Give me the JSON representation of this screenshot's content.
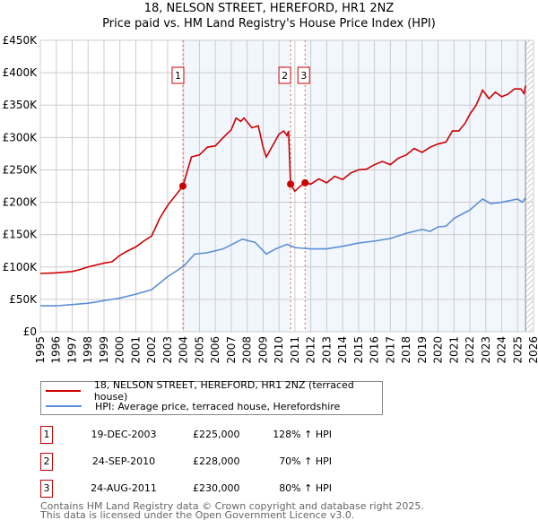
{
  "chart_data": {
    "type": "line",
    "title": "18, NELSON STREET, HEREFORD, HR1 2NZ",
    "subtitle": "Price paid vs. HM Land Registry's House Price Index (HPI)",
    "xlim": [
      1995,
      2026
    ],
    "ylim": [
      0,
      450000
    ],
    "x_ticks": [
      "1995",
      "1996",
      "1997",
      "1998",
      "1999",
      "2000",
      "2001",
      "2002",
      "2003",
      "2004",
      "2005",
      "2006",
      "2007",
      "2008",
      "2009",
      "2010",
      "2011",
      "2012",
      "2013",
      "2014",
      "2015",
      "2016",
      "2017",
      "2018",
      "2019",
      "2020",
      "2021",
      "2022",
      "2023",
      "2024",
      "2025",
      "2026"
    ],
    "y_ticks": [
      {
        "v": 0,
        "label": "£0"
      },
      {
        "v": 50000,
        "label": "£50K"
      },
      {
        "v": 100000,
        "label": "£100K"
      },
      {
        "v": 150000,
        "label": "£150K"
      },
      {
        "v": 200000,
        "label": "£200K"
      },
      {
        "v": 250000,
        "label": "£250K"
      },
      {
        "v": 300000,
        "label": "£300K"
      },
      {
        "v": 350000,
        "label": "£350K"
      },
      {
        "v": 400000,
        "label": "£400K"
      },
      {
        "v": 450000,
        "label": "£450K"
      }
    ],
    "grid": true,
    "series": [
      {
        "name": "18, NELSON STREET, HEREFORD, HR1 2NZ (terraced house)",
        "color": "#cc0000",
        "x": [
          1995,
          1996,
          1997,
          1997.5,
          1998,
          1999,
          1999.5,
          2000,
          2000.5,
          2001,
          2001.5,
          2002,
          2002.5,
          2003,
          2003.96,
          2004.5,
          2005,
          2005.5,
          2006,
          2006.5,
          2007,
          2007.3,
          2007.6,
          2007.8,
          2008.3,
          2008.7,
          2009,
          2009.2,
          2009.5,
          2010,
          2010.3,
          2010.5,
          2010.6,
          2010.73,
          2011,
          2011.3,
          2011.64,
          2012,
          2012.5,
          2013,
          2013.5,
          2014,
          2014.5,
          2015,
          2015.5,
          2016,
          2016.5,
          2017,
          2017.5,
          2018,
          2018.5,
          2019,
          2019.5,
          2020,
          2020.5,
          2020.9,
          2021.3,
          2021.7,
          2022,
          2022.4,
          2022.8,
          2023.2,
          2023.6,
          2024,
          2024.4,
          2024.8,
          2025.2,
          2025.4,
          2025.5
        ],
        "y": [
          90000,
          91000,
          93000,
          96000,
          100000,
          106000,
          108000,
          118000,
          125000,
          131000,
          140000,
          148000,
          175000,
          195000,
          225000,
          270000,
          273000,
          285000,
          287000,
          300000,
          312000,
          330000,
          325000,
          330000,
          315000,
          318000,
          285000,
          270000,
          283000,
          305000,
          310000,
          303000,
          310000,
          228000,
          217000,
          224000,
          230000,
          228000,
          236000,
          230000,
          240000,
          235000,
          245000,
          250000,
          251000,
          258000,
          263000,
          258000,
          268000,
          273000,
          283000,
          277000,
          285000,
          290000,
          293000,
          310000,
          310000,
          322000,
          336000,
          350000,
          373000,
          360000,
          370000,
          363000,
          367000,
          375000,
          375000,
          368000,
          380000
        ]
      },
      {
        "name": "HPI: Average price, terraced house, Herefordshire",
        "color": "#5b8fd4",
        "x": [
          1995,
          1996,
          1997,
          1998,
          1999,
          2000,
          2001,
          2002,
          2003,
          2004,
          2004.7,
          2005.5,
          2006.5,
          2007.7,
          2008.5,
          2009.2,
          2009.8,
          2010.5,
          2011,
          2012,
          2013,
          2014,
          2015,
          2016,
          2017,
          2018,
          2019,
          2019.5,
          2020,
          2020.5,
          2021,
          2022,
          2022.8,
          2023.3,
          2024,
          2025,
          2025.3,
          2025.5
        ],
        "y": [
          40000,
          40000,
          42000,
          44000,
          48000,
          52000,
          58000,
          65000,
          85000,
          101000,
          120000,
          122000,
          128000,
          143000,
          138000,
          120000,
          128000,
          135000,
          130000,
          128000,
          128000,
          132000,
          137000,
          140000,
          144000,
          152000,
          158000,
          155000,
          162000,
          163000,
          175000,
          188000,
          205000,
          198000,
          200000,
          205000,
          200000,
          207000
        ]
      }
    ],
    "sales": [
      {
        "label": "1",
        "x": 2003.96,
        "y": 225000,
        "date": "19-DEC-2003",
        "price": "£225,000",
        "hpi": "128% ↑ HPI"
      },
      {
        "label": "2",
        "x": 2010.73,
        "y": 228000,
        "date": "24-SEP-2010",
        "price": "£228,000",
        "hpi": "70% ↑ HPI"
      },
      {
        "label": "3",
        "x": 2011.64,
        "y": 230000,
        "date": "24-AUG-2011",
        "price": "£230,000",
        "hpi": "80% ↑ HPI"
      }
    ],
    "data_end": 2025.5
  },
  "footer": {
    "line1": "Contains HM Land Registry data © Crown copyright and database right 2025.",
    "line2": "This data is licensed under the Open Government Licence v3.0."
  }
}
